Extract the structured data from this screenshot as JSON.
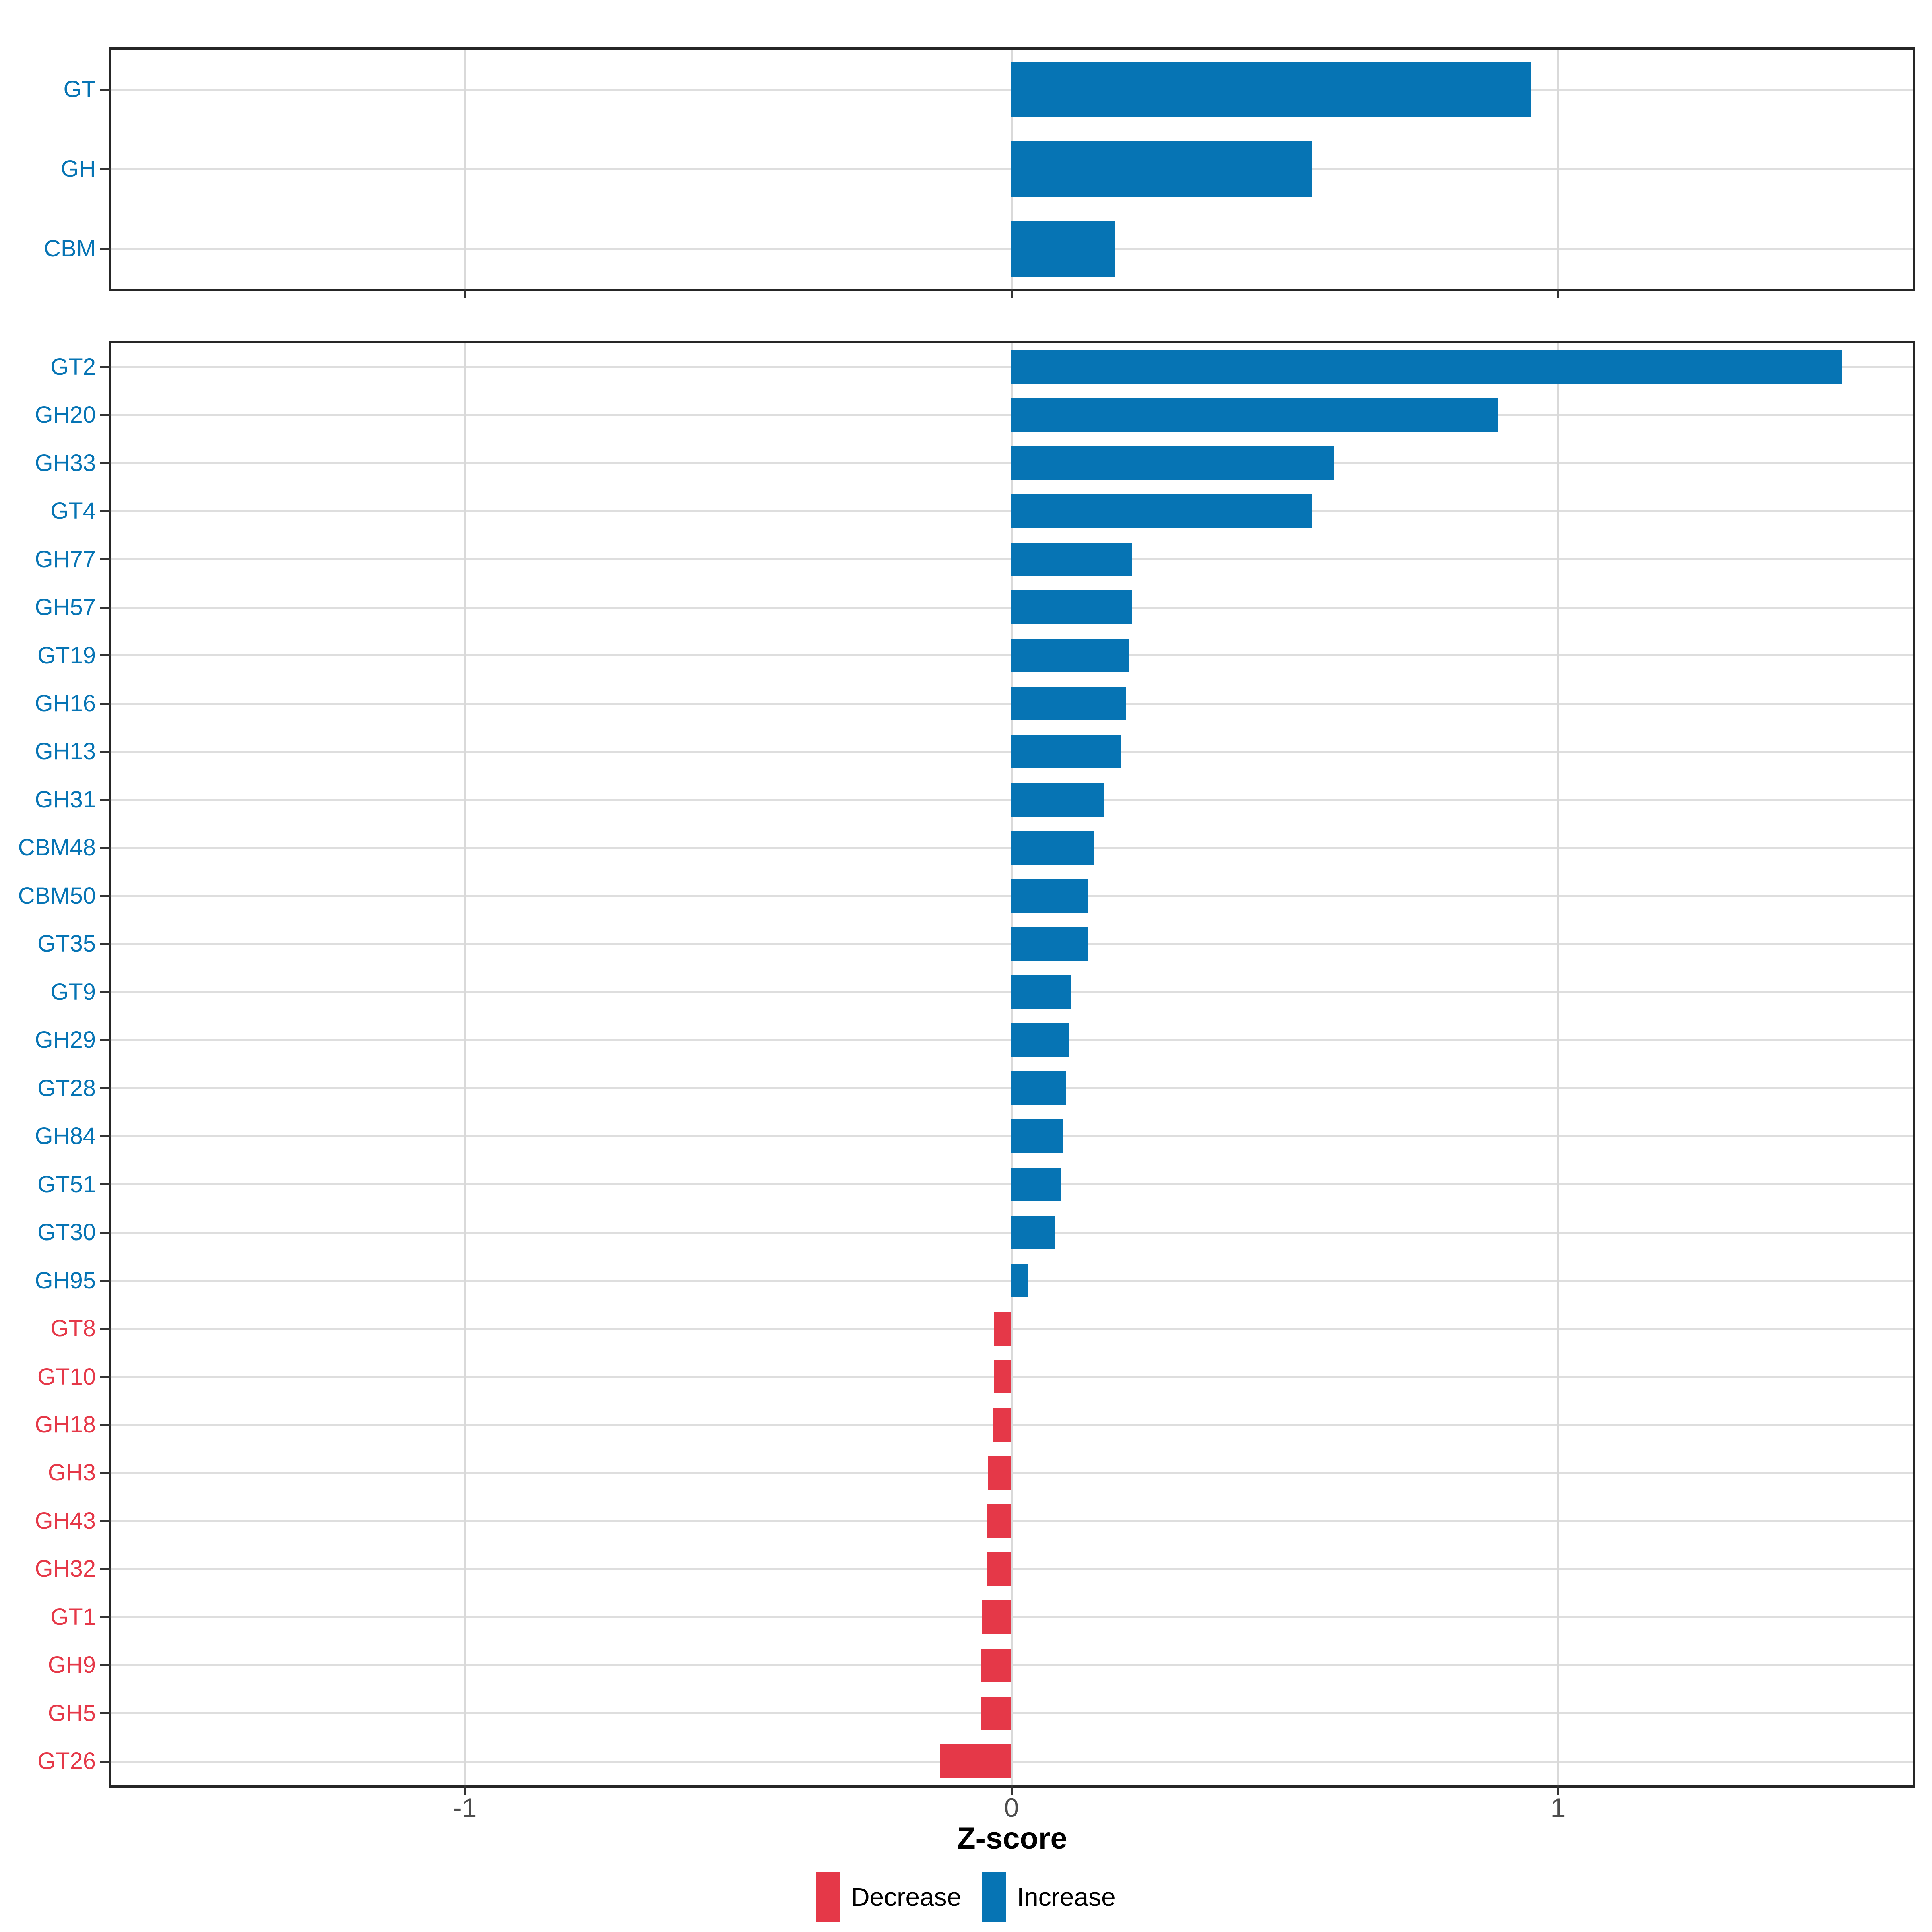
{
  "chart_data": {
    "type": "bar",
    "orientation": "horizontal",
    "title": "",
    "xlabel": "Z-score",
    "ylabel": "",
    "xlim": [
      -1.65,
      1.65
    ],
    "x_ticks": [
      -1,
      0,
      1
    ],
    "x_tick_labels": [
      "-1",
      "0",
      "1"
    ],
    "grid": "major-only",
    "legend_position": "bottom",
    "panels": [
      {
        "id": "enzyme-classes",
        "categories": [
          "GT",
          "GH",
          "CBM"
        ],
        "values": [
          0.95,
          0.55,
          0.19
        ]
      },
      {
        "id": "enzyme-families",
        "categories": [
          "GT2",
          "GH20",
          "GH33",
          "GT4",
          "GH77",
          "GH57",
          "GT19",
          "GH16",
          "GH13",
          "GH31",
          "CBM48",
          "CBM50",
          "GT35",
          "GT9",
          "GH29",
          "GT28",
          "GH84",
          "GT51",
          "GT30",
          "GH95",
          "GT8",
          "GT10",
          "GH18",
          "GH3",
          "GH43",
          "GH32",
          "GT1",
          "GH9",
          "GH5",
          "GT26"
        ],
        "values": [
          1.52,
          0.89,
          0.59,
          0.55,
          0.22,
          0.22,
          0.215,
          0.21,
          0.2,
          0.17,
          0.15,
          0.14,
          0.14,
          0.11,
          0.105,
          0.1,
          0.095,
          0.09,
          0.08,
          0.03,
          -0.032,
          -0.032,
          -0.033,
          -0.043,
          -0.046,
          -0.046,
          -0.054,
          -0.055,
          -0.056,
          -0.13
        ]
      }
    ]
  },
  "axis": {
    "title": "Z-score",
    "ticks": [
      "-1",
      "0",
      "1"
    ],
    "tick_values": [
      -1,
      0,
      1
    ]
  },
  "legend": {
    "items": [
      {
        "label": "Decrease",
        "type": "decrease",
        "color": "#e53848"
      },
      {
        "label": "Increase",
        "type": "increase",
        "color": "#0674b4"
      }
    ]
  },
  "colors": {
    "increase": "#0674b4",
    "decrease": "#e53848",
    "grid": "#dedede",
    "panel_border": "#262626",
    "tick": "#333333",
    "tick_text": "#4d4d4d",
    "axis_title_text": "#000000"
  }
}
